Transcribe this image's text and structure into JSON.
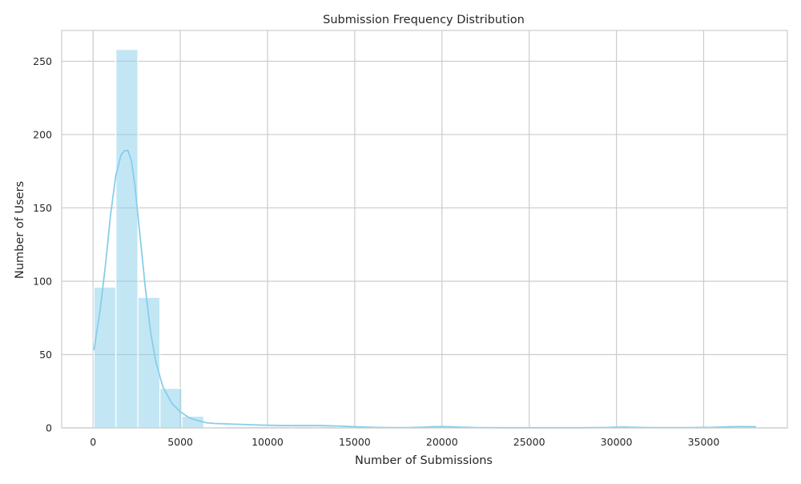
{
  "chart_data": {
    "type": "bar",
    "title": "Submission Frequency Distribution",
    "xlabel": "Number of Submissions",
    "ylabel": "Number of Users",
    "xlim": [
      -1800,
      39800
    ],
    "ylim": [
      0,
      271
    ],
    "xticks": [
      0,
      5000,
      10000,
      15000,
      20000,
      25000,
      30000,
      35000
    ],
    "yticks": [
      0,
      50,
      100,
      150,
      200,
      250
    ],
    "grid": true,
    "bar_color": "#87ceeb",
    "bar_opacity": 0.5,
    "kde_color": "#87ceeb",
    "bins": [
      {
        "x0": 50,
        "x1": 1310,
        "count": 96
      },
      {
        "x0": 1310,
        "x1": 2570,
        "count": 258
      },
      {
        "x0": 2570,
        "x1": 3830,
        "count": 89
      },
      {
        "x0": 3830,
        "x1": 5090,
        "count": 27
      },
      {
        "x0": 5090,
        "x1": 6350,
        "count": 8
      },
      {
        "x0": 6350,
        "x1": 7610,
        "count": 0
      },
      {
        "x0": 7610,
        "x1": 8870,
        "count": 1
      },
      {
        "x0": 8870,
        "x1": 10130,
        "count": 1
      },
      {
        "x0": 10130,
        "x1": 11390,
        "count": 1
      },
      {
        "x0": 11390,
        "x1": 12650,
        "count": 1
      },
      {
        "x0": 12650,
        "x1": 13910,
        "count": 1
      },
      {
        "x0": 13910,
        "x1": 15170,
        "count": 0
      },
      {
        "x0": 15170,
        "x1": 16430,
        "count": 0
      },
      {
        "x0": 16430,
        "x1": 17690,
        "count": 0
      },
      {
        "x0": 17690,
        "x1": 18950,
        "count": 0
      },
      {
        "x0": 18950,
        "x1": 20210,
        "count": 1
      },
      {
        "x0": 20210,
        "x1": 21470,
        "count": 0
      },
      {
        "x0": 21470,
        "x1": 22730,
        "count": 0
      },
      {
        "x0": 22730,
        "x1": 23990,
        "count": 0
      },
      {
        "x0": 23990,
        "x1": 25250,
        "count": 0
      },
      {
        "x0": 25250,
        "x1": 26510,
        "count": 0
      },
      {
        "x0": 26510,
        "x1": 27770,
        "count": 0
      },
      {
        "x0": 27770,
        "x1": 29030,
        "count": 0
      },
      {
        "x0": 29030,
        "x1": 30290,
        "count": 0
      },
      {
        "x0": 30290,
        "x1": 31550,
        "count": 1
      },
      {
        "x0": 31550,
        "x1": 32810,
        "count": 0
      },
      {
        "x0": 32810,
        "x1": 34070,
        "count": 0
      },
      {
        "x0": 34070,
        "x1": 35330,
        "count": 0
      },
      {
        "x0": 35330,
        "x1": 36590,
        "count": 0
      },
      {
        "x0": 36590,
        "x1": 37850,
        "count": 1
      }
    ],
    "kde": {
      "x": [
        50,
        400,
        700,
        1000,
        1300,
        1600,
        1800,
        2000,
        2200,
        2400,
        2700,
        3000,
        3300,
        3600,
        4000,
        4500,
        5000,
        5500,
        6000,
        6500,
        7000,
        7500,
        8000,
        8500,
        9000,
        9500,
        10000,
        11000,
        12000,
        13000,
        14000,
        15000,
        16000,
        17000,
        18000,
        19000,
        19500,
        20000,
        20500,
        21000,
        22000,
        24000,
        26000,
        28000,
        29500,
        30000,
        30500,
        31000,
        32000,
        34000,
        35500,
        36500,
        37000,
        37500,
        38000
      ],
      "y": [
        53,
        80,
        110,
        145,
        172,
        186,
        189,
        189,
        182,
        165,
        130,
        95,
        65,
        45,
        28,
        17,
        11,
        7,
        5,
        3.5,
        3,
        2.8,
        2.6,
        2.4,
        2.2,
        2,
        1.8,
        1.6,
        1.6,
        1.6,
        1.3,
        0.8,
        0.4,
        0.2,
        0.2,
        0.5,
        0.8,
        0.9,
        0.8,
        0.5,
        0.2,
        0.1,
        0.1,
        0.1,
        0.3,
        0.5,
        0.6,
        0.4,
        0.2,
        0.2,
        0.4,
        0.8,
        0.9,
        0.9,
        0.8
      ]
    }
  }
}
